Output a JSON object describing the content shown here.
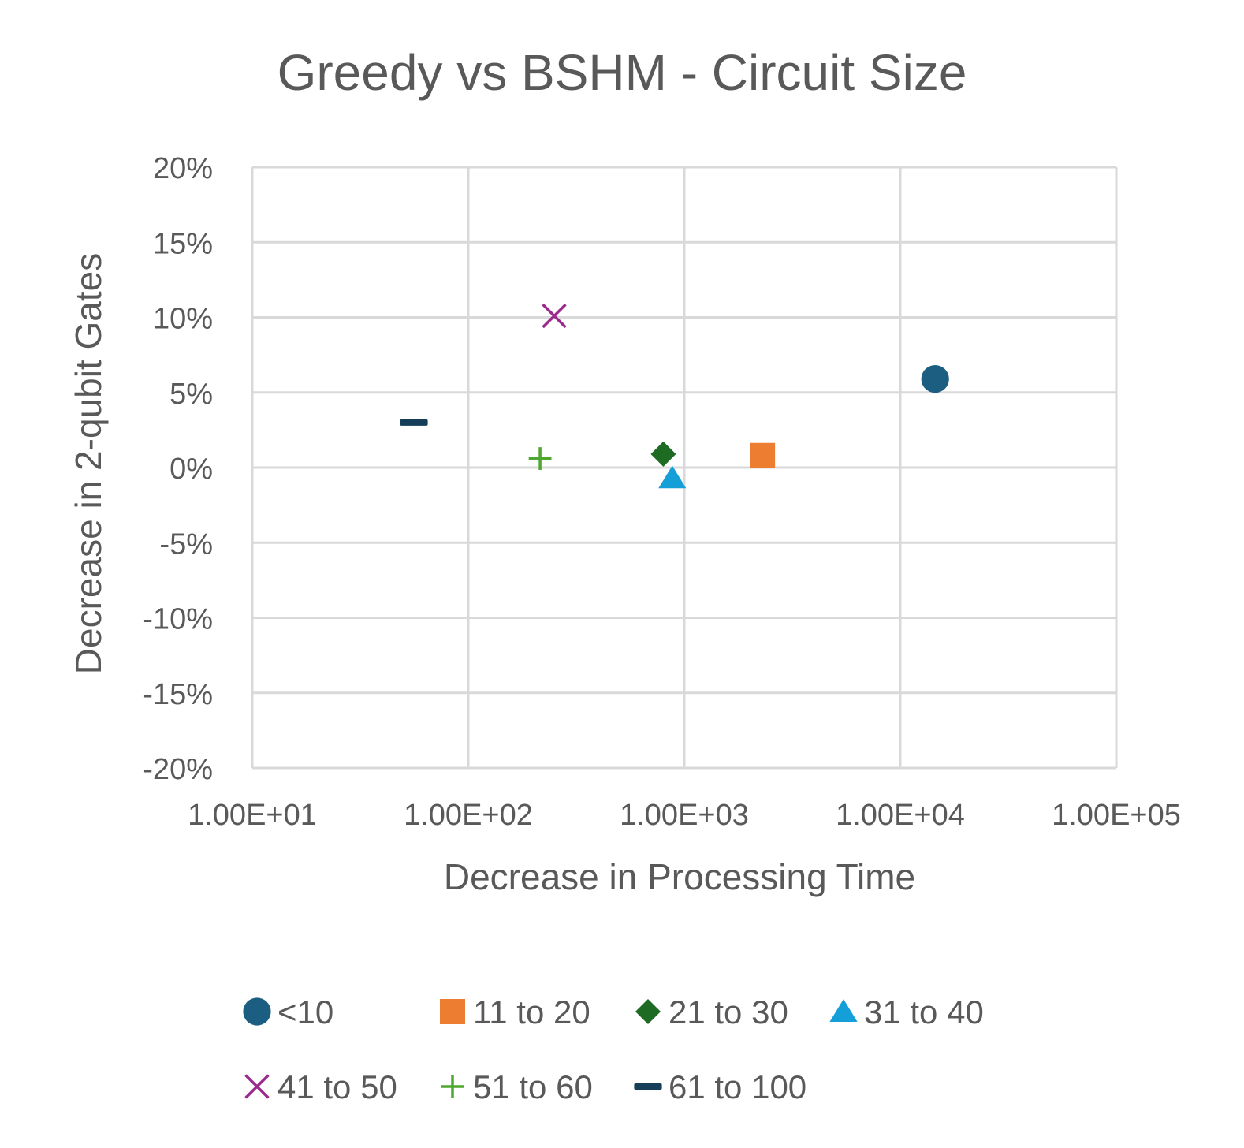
{
  "chart_data": {
    "type": "scatter",
    "title": "Greedy vs BSHM - Circuit Size",
    "xlabel": "Decrease in Processing Time",
    "ylabel": "Decrease in  2-qubit Gates",
    "x_scale": "log",
    "xlim": [
      10,
      100000
    ],
    "ylim": [
      -0.2,
      0.2
    ],
    "x_ticks": [
      10,
      100,
      1000,
      10000,
      100000
    ],
    "x_tick_labels": [
      "1.00E+01",
      "1.00E+02",
      "1.00E+03",
      "1.00E+04",
      "1.00E+05"
    ],
    "y_ticks": [
      0.2,
      0.15,
      0.1,
      0.05,
      0,
      -0.05,
      -0.1,
      -0.15,
      -0.2
    ],
    "y_tick_labels": [
      "20%",
      "15%",
      "10%",
      "5%",
      "0%",
      "-5%",
      "-10%",
      "-15%",
      "-20%"
    ],
    "grid": true,
    "legend_position": "bottom",
    "series": [
      {
        "name": "<10",
        "marker": "circle",
        "color": "#1b5e82",
        "points": [
          {
            "x": 14500,
            "y": 0.059
          }
        ]
      },
      {
        "name": "11 to 20",
        "marker": "square",
        "color": "#ed7d31",
        "points": [
          {
            "x": 2300,
            "y": 0.008
          }
        ]
      },
      {
        "name": "21 to 30",
        "marker": "diamond",
        "color": "#1e6b23",
        "points": [
          {
            "x": 800,
            "y": 0.009
          }
        ]
      },
      {
        "name": "31 to 40",
        "marker": "triangle",
        "color": "#159fd8",
        "points": [
          {
            "x": 880,
            "y": -0.007
          }
        ]
      },
      {
        "name": "41 to 50",
        "marker": "x",
        "color": "#9b2a8e",
        "points": [
          {
            "x": 250,
            "y": 0.101
          }
        ]
      },
      {
        "name": "51 to 60",
        "marker": "plus",
        "color": "#4ea72e",
        "points": [
          {
            "x": 215,
            "y": 0.006
          }
        ]
      },
      {
        "name": "61 to 100",
        "marker": "dash",
        "color": "#153e58",
        "points": [
          {
            "x": 56,
            "y": 0.03
          }
        ]
      }
    ]
  }
}
